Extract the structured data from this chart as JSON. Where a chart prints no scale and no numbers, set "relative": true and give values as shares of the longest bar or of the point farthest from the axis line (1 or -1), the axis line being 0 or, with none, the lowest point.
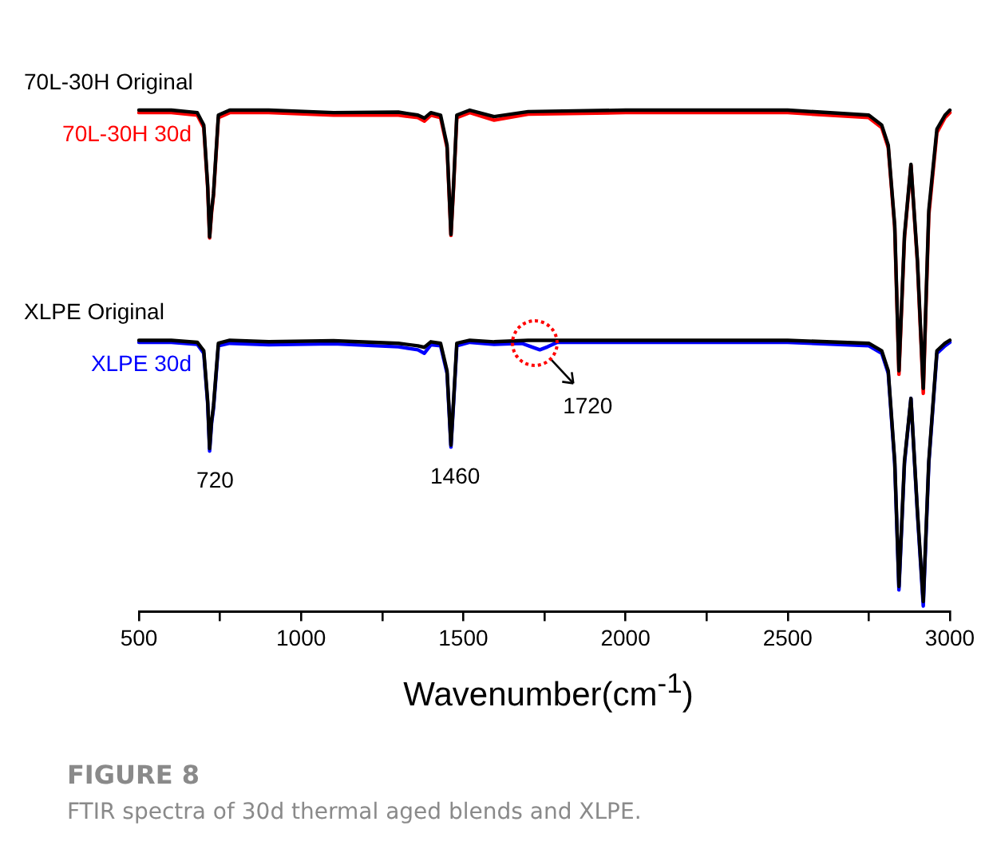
{
  "chart_data": {
    "type": "line",
    "title": "FIGURE 8",
    "subtitle": "FTIR spectra of 30d thermal aged blends and XLPE.",
    "xlabel": "Wavenumber(cm$^{-1}$)",
    "relative": true,
    "legend": false,
    "marker": "none",
    "line_style": "solid",
    "grid": false,
    "xlim": [
      500,
      3000
    ],
    "xticks": [
      500,
      {
        "value": 750,
        "label": null
      },
      1000,
      {
        "value": 1250,
        "label": null
      },
      1500,
      {
        "value": 1750,
        "label": null
      },
      2000,
      {
        "value": 2250,
        "label": null
      },
      2500,
      {
        "value": 2750,
        "label": null
      },
      3000
    ],
    "annotations": [
      {
        "text": "720",
        "x": 720,
        "y": 0.32
      },
      {
        "text": "1460",
        "x": 1460,
        "y": 0.328
      },
      {
        "text": "1720",
        "x": 1736,
        "y": 0.522
      }
    ],
    "series": [
      {
        "name": "70L-30H 30d",
        "color": "#ff0000",
        "x": [
          500,
          600,
          680,
          700,
          712,
          718,
          724,
          730,
          745,
          780,
          900,
          1100,
          1300,
          1360,
          1380,
          1400,
          1430,
          1450,
          1462,
          1470,
          1480,
          1520,
          1595,
          1700,
          2000,
          2500,
          2750,
          2790,
          2810,
          2830,
          2843,
          2860,
          2880,
          2900,
          2918,
          2935,
          2960,
          2985,
          3000
        ],
        "values": [
          0.995,
          0.995,
          0.99,
          0.965,
          0.845,
          0.745,
          0.795,
          0.83,
          0.985,
          0.995,
          0.995,
          0.99,
          0.99,
          0.985,
          0.978,
          0.99,
          0.985,
          0.925,
          0.75,
          0.845,
          0.985,
          0.995,
          0.98,
          0.992,
          0.995,
          0.995,
          0.985,
          0.965,
          0.925,
          0.765,
          0.473,
          0.745,
          0.89,
          0.695,
          0.435,
          0.79,
          0.955,
          0.985,
          0.995
        ]
      },
      {
        "name": "70L-30H Original",
        "color": "#000000",
        "x": [
          500,
          600,
          680,
          700,
          712,
          718,
          724,
          730,
          745,
          780,
          900,
          1100,
          1300,
          1360,
          1380,
          1400,
          1430,
          1450,
          1462,
          1470,
          1480,
          1520,
          1595,
          1700,
          2000,
          2500,
          2750,
          2790,
          2810,
          2830,
          2843,
          2860,
          2880,
          2900,
          2918,
          2935,
          2960,
          2985,
          3000
        ],
        "values": [
          1,
          1,
          0.995,
          0.97,
          0.85,
          0.747,
          0.8,
          0.833,
          0.99,
          1,
          1,
          0.995,
          0.996,
          0.99,
          0.984,
          0.995,
          0.99,
          0.93,
          0.752,
          0.85,
          0.99,
          1,
          0.987,
          0.997,
          1,
          1,
          0.99,
          0.97,
          0.93,
          0.77,
          0.48,
          0.75,
          0.892,
          0.7,
          0.445,
          0.8,
          0.962,
          0.99,
          1
        ]
      },
      {
        "name": "XLPE 30d",
        "color": "#0000ff",
        "x": [
          500,
          600,
          680,
          700,
          712,
          718,
          724,
          730,
          745,
          780,
          900,
          1100,
          1300,
          1360,
          1380,
          1400,
          1430,
          1450,
          1462,
          1470,
          1480,
          1520,
          1595,
          1680,
          1710,
          1736,
          1760,
          1790,
          2000,
          2500,
          2750,
          2790,
          2810,
          2830,
          2843,
          2860,
          2880,
          2900,
          2918,
          2935,
          2960,
          2985,
          3000
        ],
        "values": [
          0.537,
          0.537,
          0.533,
          0.515,
          0.415,
          0.32,
          0.375,
          0.405,
          0.53,
          0.535,
          0.532,
          0.534,
          0.528,
          0.522,
          0.515,
          0.532,
          0.53,
          0.475,
          0.328,
          0.415,
          0.53,
          0.537,
          0.533,
          0.535,
          0.528,
          0.522,
          0.528,
          0.537,
          0.537,
          0.537,
          0.53,
          0.515,
          0.475,
          0.295,
          0.043,
          0.295,
          0.425,
          0.195,
          0.011,
          0.295,
          0.515,
          0.53,
          0.537
        ]
      },
      {
        "name": "XLPE Original",
        "color": "#000000",
        "x": [
          500,
          600,
          680,
          700,
          712,
          718,
          724,
          730,
          745,
          780,
          900,
          1100,
          1300,
          1360,
          1380,
          1400,
          1430,
          1450,
          1462,
          1470,
          1480,
          1520,
          1595,
          1700,
          2000,
          2500,
          2750,
          2790,
          2810,
          2830,
          2843,
          2860,
          2880,
          2900,
          2918,
          2935,
          2960,
          2985,
          3000
        ],
        "values": [
          0.541,
          0.541,
          0.537,
          0.52,
          0.42,
          0.325,
          0.38,
          0.41,
          0.535,
          0.541,
          0.538,
          0.54,
          0.535,
          0.53,
          0.527,
          0.538,
          0.535,
          0.48,
          0.332,
          0.42,
          0.535,
          0.541,
          0.538,
          0.541,
          0.541,
          0.541,
          0.535,
          0.52,
          0.48,
          0.3,
          0.05,
          0.3,
          0.425,
          0.2,
          0.02,
          0.3,
          0.52,
          0.535,
          0.541
        ]
      }
    ]
  }
}
